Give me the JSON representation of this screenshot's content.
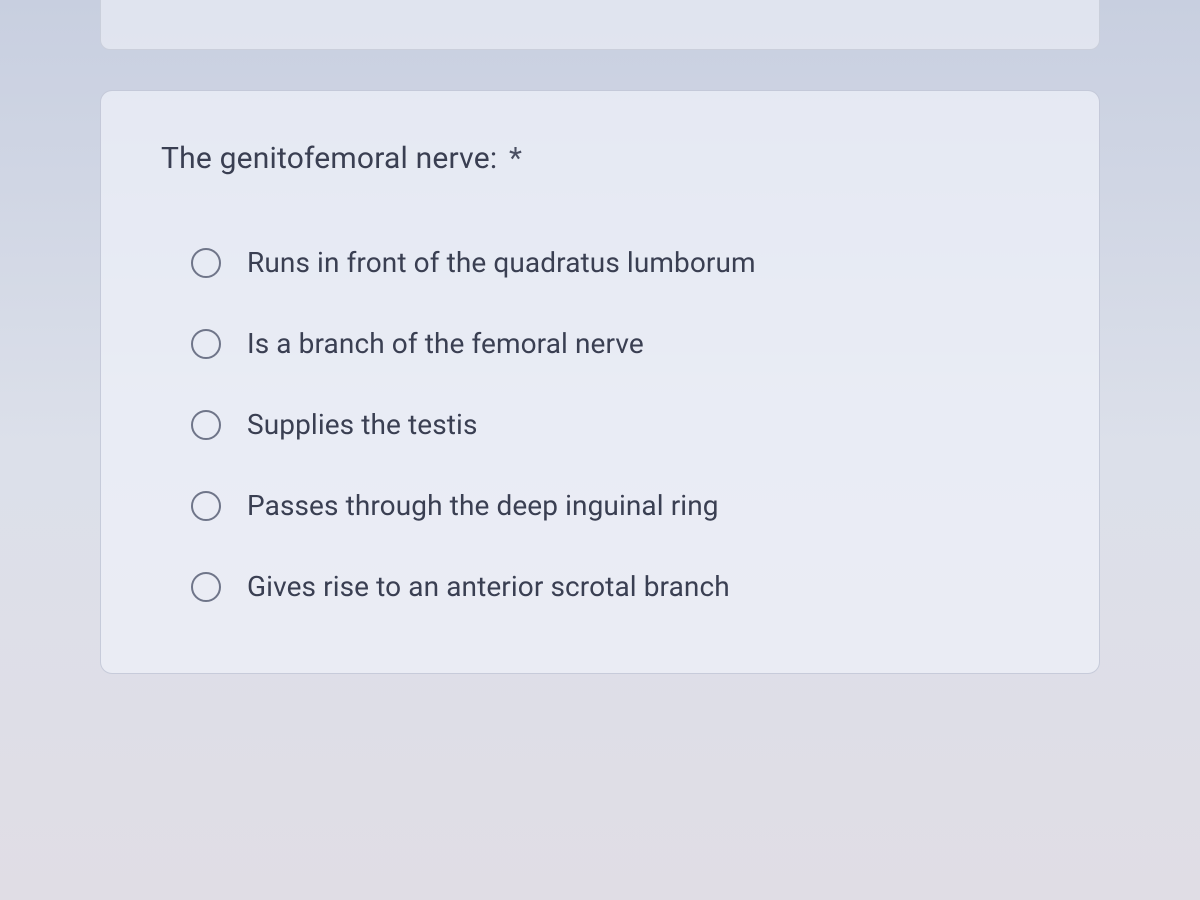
{
  "question": {
    "title": "The genitofemoral nerve:",
    "required_marker": "*",
    "options": [
      {
        "label": "Runs in front of the quadratus lumborum"
      },
      {
        "label": "Is a branch of the femoral nerve"
      },
      {
        "label": "Supplies the testis"
      },
      {
        "label": "Passes through the deep inguinal ring"
      },
      {
        "label": "Gives rise to an anterior scrotal branch"
      }
    ]
  },
  "styling": {
    "card_background": "rgba(238, 240, 248, 0.75)",
    "card_border_color": "rgba(170, 175, 195, 0.55)",
    "card_border_radius": 12,
    "body_background_gradient": [
      "#c8cfe0",
      "#dce0ea",
      "#e0dde5"
    ],
    "title_fontsize": 30,
    "title_color": "#3a3f52",
    "option_fontsize": 28,
    "option_color": "#3a3f52",
    "radio_border_color": "#6f7589",
    "radio_size": 30,
    "option_gap": 48
  }
}
